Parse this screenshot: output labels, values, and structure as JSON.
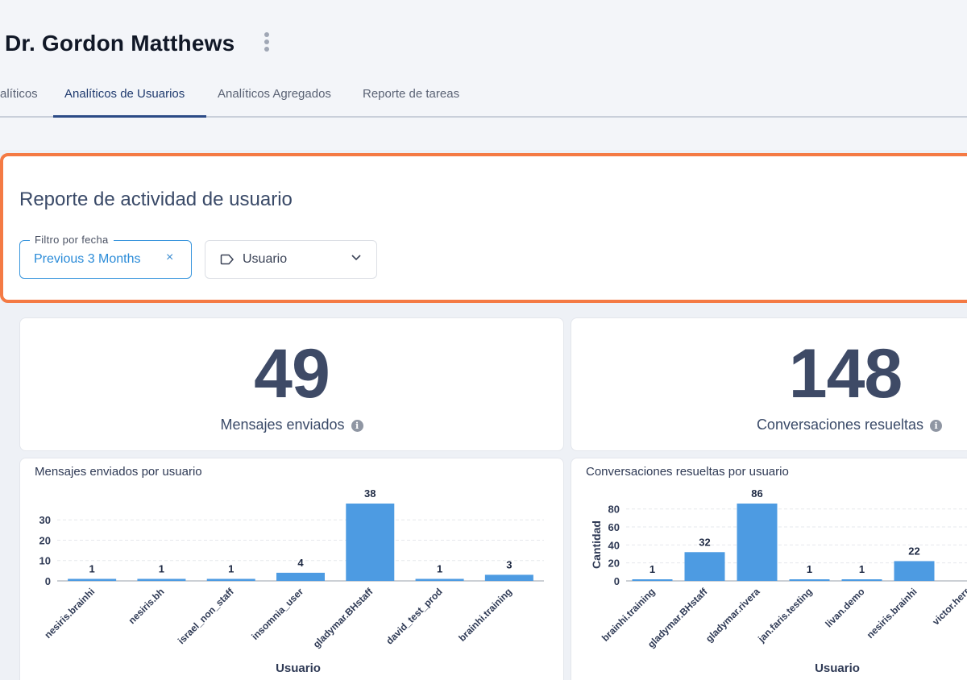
{
  "header": {
    "title": "Dr. Gordon Matthews"
  },
  "tabs": [
    {
      "label": "alíticos",
      "active": false
    },
    {
      "label": "Analíticos de Usuarios",
      "active": true
    },
    {
      "label": "Analíticos Agregados",
      "active": false
    },
    {
      "label": "Reporte de tareas",
      "active": false
    }
  ],
  "report": {
    "title": "Reporte de actividad de usuario",
    "date_filter": {
      "label": "Filtro por fecha",
      "value": "Previous 3 Months",
      "clear_icon": "×"
    },
    "user_filter": {
      "label": "Usuario",
      "icon": "tag-icon"
    }
  },
  "stats": {
    "messages": {
      "value": "49",
      "label": "Mensajes enviados"
    },
    "conversations": {
      "value": "148",
      "label": "Conversaciones resueltas"
    }
  },
  "colors": {
    "accent": "#f47a44",
    "bar": "#4d9be2",
    "active_tab": "#2b4a86",
    "stat": "#3e4a66"
  },
  "chart_data": [
    {
      "type": "bar",
      "title": "Mensajes enviados por usuario",
      "xlabel": "Usuario",
      "ylabel": "",
      "categories": [
        "nesiris.brainhi",
        "nesiris.bh",
        "israel_non_staff",
        "insomnia_user",
        "gladymar.BHstaff",
        "david_test_prod",
        "brainhi.training"
      ],
      "values": [
        1,
        1,
        1,
        4,
        38,
        1,
        3
      ],
      "yticks": [
        0,
        10,
        20,
        30
      ],
      "ylim": [
        0,
        38
      ]
    },
    {
      "type": "bar",
      "title": "Conversaciones resueltas por usuario",
      "xlabel": "Usuario",
      "ylabel": "Cantidad",
      "categories": [
        "brainhi.training",
        "gladymar.BHstaff",
        "gladymar.rivera",
        "jan.faris.testing",
        "livan.demo",
        "nesiris.brainhi",
        "victor.herr"
      ],
      "values": [
        1,
        32,
        86,
        1,
        1,
        22,
        null
      ],
      "yticks": [
        0,
        20,
        40,
        60,
        80
      ],
      "ylim": [
        0,
        86
      ]
    }
  ]
}
